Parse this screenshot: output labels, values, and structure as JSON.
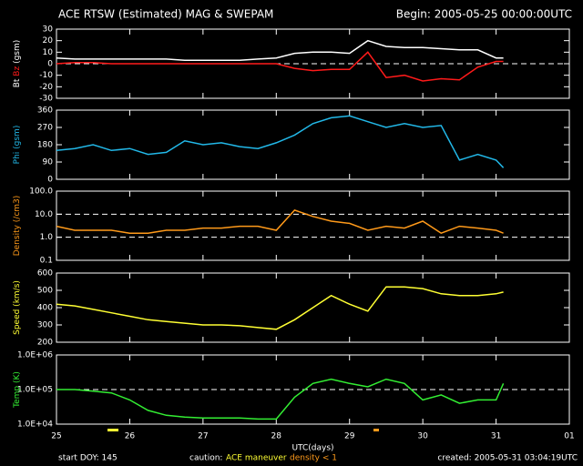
{
  "header": {
    "title": "ACE RTSW (Estimated) MAG & SWEPAM",
    "begin": "Begin: 2005-05-25 00:00:00UTC"
  },
  "footer": {
    "start": "start DOY: 145",
    "caution": "caution:",
    "maneuver": "ACE maneuver",
    "density_note": "density < 1",
    "created": "created: 2005-05-31 03:04:19UTC"
  },
  "chart_data": [
    {
      "type": "line",
      "ylabel": "(gsm)",
      "color": "#ffffff",
      "x": [
        25,
        25.25,
        25.5,
        25.75,
        26,
        26.25,
        26.5,
        26.75,
        27,
        27.25,
        27.5,
        27.75,
        28,
        28.25,
        28.5,
        28.75,
        29,
        29.25,
        29.5,
        29.75,
        30,
        30.25,
        30.5,
        30.75,
        31,
        31.1
      ],
      "series": [
        {
          "name": "Bt",
          "color": "#ffffff",
          "values": [
            5,
            4,
            4,
            4,
            4,
            4,
            4,
            3,
            3,
            3,
            3,
            4,
            5,
            9,
            10,
            10,
            9,
            20,
            15,
            14,
            14,
            13,
            12,
            12,
            5,
            5
          ]
        },
        {
          "name": "Bz",
          "color": "#ff1a1a",
          "values": [
            0,
            1,
            1,
            0,
            0,
            0,
            0,
            0,
            0,
            0,
            0,
            0,
            0,
            -4,
            -6,
            -5,
            -5,
            10,
            -12,
            -10,
            -15,
            -13,
            -14,
            -3,
            2,
            2
          ]
        }
      ],
      "xlim": [
        25,
        32
      ],
      "ylim": [
        -30,
        30
      ],
      "yticks": [
        -30,
        -20,
        -10,
        0,
        10,
        20,
        30
      ],
      "hlines": [
        0
      ]
    },
    {
      "type": "line",
      "ylabel": "Phi (gsm)",
      "color": "#22b8e8",
      "x": [
        25,
        25.25,
        25.5,
        25.75,
        26,
        26.25,
        26.5,
        26.75,
        27,
        27.25,
        27.5,
        27.75,
        28,
        28.25,
        28.5,
        28.75,
        29,
        29.25,
        29.5,
        29.75,
        30,
        30.25,
        30.5,
        30.75,
        31,
        31.1
      ],
      "series": [
        {
          "color": "#22b8e8",
          "values": [
            150,
            160,
            180,
            150,
            160,
            130,
            140,
            200,
            180,
            190,
            170,
            160,
            190,
            230,
            290,
            320,
            330,
            300,
            270,
            290,
            270,
            280,
            100,
            130,
            100,
            60
          ]
        }
      ],
      "xlim": [
        25,
        32
      ],
      "ylim": [
        0,
        360
      ],
      "yticks": [
        0,
        90,
        180,
        270,
        360
      ]
    },
    {
      "type": "line",
      "ylabel": "Density (/cm3)",
      "color": "#ff9a1a",
      "log": true,
      "x": [
        25,
        25.25,
        25.5,
        25.75,
        26,
        26.25,
        26.5,
        26.75,
        27,
        27.25,
        27.5,
        27.75,
        28,
        28.25,
        28.5,
        28.75,
        29,
        29.25,
        29.5,
        29.75,
        30,
        30.25,
        30.5,
        30.75,
        31,
        31.1
      ],
      "series": [
        {
          "color": "#ff9a1a",
          "values": [
            3,
            2,
            2,
            2,
            1.5,
            1.5,
            2,
            2,
            2.5,
            2.5,
            3,
            3,
            2,
            15,
            8,
            5,
            4,
            2,
            3,
            2.5,
            5,
            1.5,
            3,
            2.5,
            2,
            1.5
          ]
        }
      ],
      "xlim": [
        25,
        32
      ],
      "ylim": [
        0.1,
        100
      ],
      "yticks": [
        0.1,
        {
          "value": 1,
          "label": "1.0"
        },
        {
          "value": 10,
          "label": "10.0"
        },
        {
          "value": 100,
          "label": "100.0"
        }
      ],
      "hlines": [
        1,
        10
      ]
    },
    {
      "type": "line",
      "ylabel": "Speed (km/s)",
      "color": "#ffff33",
      "x": [
        25,
        25.25,
        25.5,
        25.75,
        26,
        26.25,
        26.5,
        26.75,
        27,
        27.25,
        27.5,
        27.75,
        28,
        28.25,
        28.5,
        28.75,
        29,
        29.25,
        29.5,
        29.75,
        30,
        30.25,
        30.5,
        30.75,
        31,
        31.1
      ],
      "series": [
        {
          "color": "#ffff33",
          "values": [
            420,
            410,
            390,
            370,
            350,
            330,
            320,
            310,
            300,
            300,
            295,
            285,
            275,
            330,
            400,
            470,
            420,
            380,
            520,
            520,
            510,
            480,
            470,
            470,
            480,
            490
          ]
        }
      ],
      "xlim": [
        25,
        32
      ],
      "ylim": [
        200,
        600
      ],
      "yticks": [
        200,
        300,
        400,
        500,
        600
      ]
    },
    {
      "type": "line",
      "ylabel": "Temp (K)",
      "color": "#33ee33",
      "log": true,
      "x": [
        25,
        25.25,
        25.5,
        25.75,
        26,
        26.25,
        26.5,
        26.75,
        27,
        27.25,
        27.5,
        27.75,
        28,
        28.25,
        28.5,
        28.75,
        29,
        29.25,
        29.5,
        29.75,
        30,
        30.25,
        30.5,
        30.75,
        31,
        31.1
      ],
      "series": [
        {
          "color": "#33ee33",
          "values": [
            100000,
            100000,
            90000,
            80000,
            50000,
            25000,
            18000,
            16000,
            15000,
            15000,
            15000,
            14000,
            14000,
            60000,
            150000,
            200000,
            150000,
            120000,
            200000,
            150000,
            50000,
            70000,
            40000,
            50000,
            50000,
            150000
          ]
        }
      ],
      "xlim": [
        25,
        32
      ],
      "ylim": [
        10000,
        1000000
      ],
      "yticks": [
        {
          "value": 10000,
          "label": "1.0E+04"
        },
        {
          "value": 100000,
          "label": "1.0E+05"
        },
        {
          "value": 1000000,
          "label": "1.0E+06"
        }
      ],
      "hlines": [
        100000
      ],
      "xticks": [
        25,
        26,
        27,
        28,
        29,
        30,
        31,
        {
          "value": 32,
          "label": "01"
        }
      ],
      "xlabel": "UTC(days)"
    }
  ]
}
